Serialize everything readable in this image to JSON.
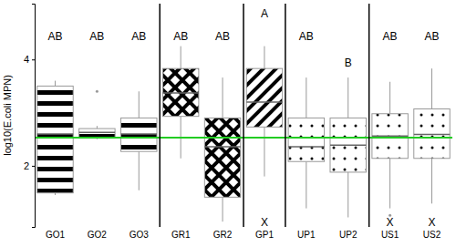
{
  "chart_data": {
    "type": "box",
    "y_label": "log10(E.coli MPN)",
    "categories": [
      "GO1",
      "GO2",
      "GO3",
      "GR1",
      "GR2",
      "GP1",
      "UP1",
      "UP2",
      "US1",
      "US2"
    ],
    "boxes": [
      {
        "min": 1.45,
        "q1": 1.49,
        "median": 2.6,
        "q3": 3.5,
        "max": 3.6,
        "outliers": []
      },
      {
        "min": 2.5,
        "q1": 2.52,
        "median": 2.63,
        "q3": 2.7,
        "max": 2.75,
        "outliers": [
          3.4
        ]
      },
      {
        "min": 1.54,
        "q1": 2.27,
        "median": 2.6,
        "q3": 2.9,
        "max": 3.4,
        "outliers": []
      },
      {
        "min": 2.14,
        "q1": 2.93,
        "median": 3.37,
        "q3": 3.83,
        "max": 4.25,
        "outliers": []
      },
      {
        "min": 0.95,
        "q1": 1.41,
        "median": 2.36,
        "q3": 2.9,
        "max": 3.66,
        "outliers": []
      },
      {
        "min": 1.8,
        "q1": 2.73,
        "median": 3.2,
        "q3": 3.83,
        "max": 4.25,
        "outliers": []
      },
      {
        "min": 1.2,
        "q1": 2.08,
        "median": 2.36,
        "q3": 2.9,
        "max": 3.66,
        "outliers": []
      },
      {
        "min": 1.03,
        "q1": 1.88,
        "median": 2.39,
        "q3": 2.9,
        "max": 3.66,
        "outliers": []
      },
      {
        "min": 1.2,
        "q1": 2.14,
        "median": 2.56,
        "q3": 2.98,
        "max": 3.58,
        "outliers": [
          1.07
        ]
      },
      {
        "min": 1.29,
        "q1": 2.14,
        "median": 2.59,
        "q3": 3.07,
        "max": 3.83,
        "outliers": []
      }
    ],
    "letters": [
      {
        "text": "AB",
        "y": 4.42
      },
      {
        "text": "AB",
        "y": 4.42
      },
      {
        "text": "AB",
        "y": 4.42
      },
      {
        "text": "AB",
        "y": 4.42
      },
      {
        "text": "AB",
        "y": 4.42
      },
      {
        "text": "A",
        "y": 4.85
      },
      {
        "text": "AB",
        "y": 4.42
      },
      {
        "text": "B",
        "y": 3.92
      },
      {
        "text": "AB",
        "y": 4.42
      },
      {
        "text": "AB",
        "y": 4.42
      }
    ],
    "lower_letters": [
      null,
      null,
      null,
      null,
      null,
      {
        "text": "X",
        "y": 0.93
      },
      null,
      null,
      {
        "text": "X",
        "y": 0.93
      },
      {
        "text": "X",
        "y": 0.93
      }
    ],
    "reference_line": {
      "value": 2.53,
      "color": "#22cc22"
    },
    "ylim": [
      0.85,
      5.05
    ],
    "yticks": [
      2,
      4
    ],
    "grid": false
  }
}
